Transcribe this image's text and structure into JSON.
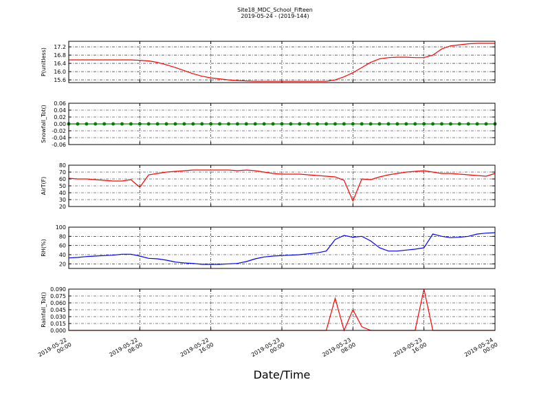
{
  "title": "Site18_MDC_School_Fifteen",
  "subtitle": "2019-05-24 - (2019-144)",
  "xlabel": "Date/Time",
  "chart_data": [
    {
      "type": "line",
      "ylabel": "P(unitless)",
      "color": "#ff0000",
      "grid": true,
      "xlim": [
        "2019-05-22 00:00",
        "2019-05-24 00:00"
      ],
      "xticks": [
        "2019-05-22 00:00",
        "2019-05-22 08:00",
        "2019-05-22 16:00",
        "2019-05-23 00:00",
        "2019-05-23 08:00",
        "2019-05-23 16:00",
        "2019-05-24 00:00"
      ],
      "ylim": [
        15.47,
        17.47
      ],
      "yticks": [
        15.6,
        {
          "value": 16,
          "label": "16.0"
        },
        16.4,
        16.8,
        17.2
      ],
      "x": [
        "2019-05-22 00:00",
        "2019-05-22 01:00",
        "2019-05-22 02:00",
        "2019-05-22 03:00",
        "2019-05-22 04:00",
        "2019-05-22 05:00",
        "2019-05-22 06:00",
        "2019-05-22 07:00",
        "2019-05-22 08:00",
        "2019-05-22 09:00",
        "2019-05-22 10:00",
        "2019-05-22 11:00",
        "2019-05-22 12:00",
        "2019-05-22 13:00",
        "2019-05-22 14:00",
        "2019-05-22 15:00",
        "2019-05-22 16:00",
        "2019-05-22 17:00",
        "2019-05-22 18:00",
        "2019-05-22 19:00",
        "2019-05-22 20:00",
        "2019-05-22 21:00",
        "2019-05-22 22:00",
        "2019-05-22 23:00",
        "2019-05-23 00:00",
        "2019-05-23 01:00",
        "2019-05-23 02:00",
        "2019-05-23 03:00",
        "2019-05-23 04:00",
        "2019-05-23 05:00",
        "2019-05-23 06:00",
        "2019-05-23 07:00",
        "2019-05-23 08:00",
        "2019-05-23 09:00",
        "2019-05-23 10:00",
        "2019-05-23 11:00",
        "2019-05-23 12:00",
        "2019-05-23 13:00",
        "2019-05-23 14:00",
        "2019-05-23 15:00",
        "2019-05-23 16:00",
        "2019-05-23 17:00",
        "2019-05-23 18:00",
        "2019-05-23 19:00",
        "2019-05-23 20:00",
        "2019-05-23 21:00",
        "2019-05-23 22:00",
        "2019-05-23 23:00",
        "2019-05-24 00:00"
      ],
      "values": [
        16.57,
        16.57,
        16.57,
        16.57,
        16.57,
        16.57,
        16.57,
        16.57,
        16.55,
        16.52,
        16.45,
        16.33,
        16.2,
        16.05,
        15.9,
        15.78,
        15.7,
        15.65,
        15.6,
        15.57,
        15.55,
        15.53,
        15.53,
        15.53,
        15.53,
        15.53,
        15.53,
        15.53,
        15.53,
        15.53,
        15.6,
        15.75,
        15.95,
        16.2,
        16.45,
        16.62,
        16.68,
        16.7,
        16.7,
        16.68,
        16.68,
        16.8,
        17.1,
        17.25,
        17.3,
        17.35,
        17.37,
        17.37,
        17.37
      ]
    },
    {
      "type": "line",
      "ylabel": "Snowfall_Tot()",
      "color": "#008000",
      "marker": true,
      "grid": true,
      "xlim": [
        "2019-05-22 00:00",
        "2019-05-24 00:00"
      ],
      "xticks": [
        "2019-05-22 00:00",
        "2019-05-22 08:00",
        "2019-05-22 16:00",
        "2019-05-23 00:00",
        "2019-05-23 08:00",
        "2019-05-23 16:00",
        "2019-05-24 00:00"
      ],
      "ylim": [
        -0.06,
        0.06
      ],
      "yticks": [
        -0.06,
        -0.04,
        -0.02,
        {
          "value": 0,
          "label": "0.00"
        },
        0.02,
        0.04,
        0.06
      ],
      "x": [
        "2019-05-22 00:00",
        "2019-05-22 01:00",
        "2019-05-22 02:00",
        "2019-05-22 03:00",
        "2019-05-22 04:00",
        "2019-05-22 05:00",
        "2019-05-22 06:00",
        "2019-05-22 07:00",
        "2019-05-22 08:00",
        "2019-05-22 09:00",
        "2019-05-22 10:00",
        "2019-05-22 11:00",
        "2019-05-22 12:00",
        "2019-05-22 13:00",
        "2019-05-22 14:00",
        "2019-05-22 15:00",
        "2019-05-22 16:00",
        "2019-05-22 17:00",
        "2019-05-22 18:00",
        "2019-05-22 19:00",
        "2019-05-22 20:00",
        "2019-05-22 21:00",
        "2019-05-22 22:00",
        "2019-05-22 23:00",
        "2019-05-23 00:00",
        "2019-05-23 01:00",
        "2019-05-23 02:00",
        "2019-05-23 03:00",
        "2019-05-23 04:00",
        "2019-05-23 05:00",
        "2019-05-23 06:00",
        "2019-05-23 07:00",
        "2019-05-23 08:00",
        "2019-05-23 09:00",
        "2019-05-23 10:00",
        "2019-05-23 11:00",
        "2019-05-23 12:00",
        "2019-05-23 13:00",
        "2019-05-23 14:00",
        "2019-05-23 15:00",
        "2019-05-23 16:00",
        "2019-05-23 17:00",
        "2019-05-23 18:00",
        "2019-05-23 19:00",
        "2019-05-23 20:00",
        "2019-05-23 21:00",
        "2019-05-23 22:00",
        "2019-05-23 23:00",
        "2019-05-24 00:00"
      ],
      "values": [
        0,
        0,
        0,
        0,
        0,
        0,
        0,
        0,
        0,
        0,
        0,
        0,
        0,
        0,
        0,
        0,
        0,
        0,
        0,
        0,
        0,
        0,
        0,
        0,
        0,
        0,
        0,
        0,
        0,
        0,
        0,
        0,
        0,
        0,
        0,
        0,
        0,
        0,
        0,
        0,
        0,
        0,
        0,
        0,
        0,
        0,
        0,
        0,
        0
      ]
    },
    {
      "type": "line",
      "ylabel": "AirT(F)",
      "color": "#ff0000",
      "grid": true,
      "xlim": [
        "2019-05-22 00:00",
        "2019-05-24 00:00"
      ],
      "xticks": [
        "2019-05-22 00:00",
        "2019-05-22 08:00",
        "2019-05-22 16:00",
        "2019-05-23 00:00",
        "2019-05-23 08:00",
        "2019-05-23 16:00",
        "2019-05-24 00:00"
      ],
      "ylim": [
        20,
        80
      ],
      "yticks": [
        20,
        30,
        40,
        50,
        60,
        70,
        80
      ],
      "x": [
        "2019-05-22 00:00",
        "2019-05-22 01:00",
        "2019-05-22 02:00",
        "2019-05-22 03:00",
        "2019-05-22 04:00",
        "2019-05-22 05:00",
        "2019-05-22 06:00",
        "2019-05-22 07:00",
        "2019-05-22 08:00",
        "2019-05-22 09:00",
        "2019-05-22 10:00",
        "2019-05-22 11:00",
        "2019-05-22 12:00",
        "2019-05-22 13:00",
        "2019-05-22 14:00",
        "2019-05-22 15:00",
        "2019-05-22 16:00",
        "2019-05-22 17:00",
        "2019-05-22 18:00",
        "2019-05-22 19:00",
        "2019-05-22 20:00",
        "2019-05-22 21:00",
        "2019-05-22 22:00",
        "2019-05-22 23:00",
        "2019-05-23 00:00",
        "2019-05-23 01:00",
        "2019-05-23 02:00",
        "2019-05-23 03:00",
        "2019-05-23 04:00",
        "2019-05-23 05:00",
        "2019-05-23 06:00",
        "2019-05-23 07:00",
        "2019-05-23 08:00",
        "2019-05-23 09:00",
        "2019-05-23 10:00",
        "2019-05-23 11:00",
        "2019-05-23 12:00",
        "2019-05-23 13:00",
        "2019-05-23 14:00",
        "2019-05-23 15:00",
        "2019-05-23 16:00",
        "2019-05-23 17:00",
        "2019-05-23 18:00",
        "2019-05-23 19:00",
        "2019-05-23 20:00",
        "2019-05-23 21:00",
        "2019-05-23 22:00",
        "2019-05-23 23:00",
        "2019-05-24 00:00"
      ],
      "values": [
        61,
        60,
        60,
        59,
        58,
        57,
        57,
        59,
        48,
        66,
        68,
        70,
        71,
        72,
        73,
        73,
        73,
        73,
        73,
        72,
        73,
        72,
        70,
        68,
        67,
        67,
        67,
        66,
        65,
        64,
        63,
        58,
        28,
        60,
        59,
        63,
        66,
        68,
        70,
        71,
        72,
        70,
        68,
        68,
        67,
        66,
        65,
        64,
        68
      ]
    },
    {
      "type": "line",
      "ylabel": "RH(%)",
      "color": "#0000ff",
      "grid": true,
      "xlim": [
        "2019-05-22 00:00",
        "2019-05-24 00:00"
      ],
      "xticks": [
        "2019-05-22 00:00",
        "2019-05-22 08:00",
        "2019-05-22 16:00",
        "2019-05-23 00:00",
        "2019-05-23 08:00",
        "2019-05-23 16:00",
        "2019-05-24 00:00"
      ],
      "ylim": [
        10,
        100
      ],
      "yticks": [
        20,
        40,
        60,
        80,
        100
      ],
      "x": [
        "2019-05-22 00:00",
        "2019-05-22 01:00",
        "2019-05-22 02:00",
        "2019-05-22 03:00",
        "2019-05-22 04:00",
        "2019-05-22 05:00",
        "2019-05-22 06:00",
        "2019-05-22 07:00",
        "2019-05-22 08:00",
        "2019-05-22 09:00",
        "2019-05-22 10:00",
        "2019-05-22 11:00",
        "2019-05-22 12:00",
        "2019-05-22 13:00",
        "2019-05-22 14:00",
        "2019-05-22 15:00",
        "2019-05-22 16:00",
        "2019-05-22 17:00",
        "2019-05-22 18:00",
        "2019-05-22 19:00",
        "2019-05-22 20:00",
        "2019-05-22 21:00",
        "2019-05-22 22:00",
        "2019-05-22 23:00",
        "2019-05-23 00:00",
        "2019-05-23 01:00",
        "2019-05-23 02:00",
        "2019-05-23 03:00",
        "2019-05-23 04:00",
        "2019-05-23 05:00",
        "2019-05-23 06:00",
        "2019-05-23 07:00",
        "2019-05-23 08:00",
        "2019-05-23 09:00",
        "2019-05-23 10:00",
        "2019-05-23 11:00",
        "2019-05-23 12:00",
        "2019-05-23 13:00",
        "2019-05-23 14:00",
        "2019-05-23 15:00",
        "2019-05-23 16:00",
        "2019-05-23 17:00",
        "2019-05-23 18:00",
        "2019-05-23 19:00",
        "2019-05-23 20:00",
        "2019-05-23 21:00",
        "2019-05-23 22:00",
        "2019-05-23 23:00",
        "2019-05-24 00:00"
      ],
      "values": [
        33,
        34,
        36,
        37,
        38,
        39,
        41,
        41,
        37,
        32,
        31,
        28,
        24,
        22,
        21,
        19,
        19,
        19,
        20,
        21,
        25,
        31,
        35,
        37,
        38,
        39,
        40,
        42,
        44,
        48,
        73,
        82,
        78,
        80,
        70,
        55,
        48,
        48,
        50,
        52,
        55,
        85,
        80,
        77,
        78,
        80,
        85,
        87,
        88
      ]
    },
    {
      "type": "line",
      "ylabel": "Rainfall_Tot()",
      "color": "#ff0000",
      "grid": true,
      "xlim": [
        "2019-05-22 00:00",
        "2019-05-24 00:00"
      ],
      "xticks": [
        "2019-05-22 00:00",
        "2019-05-22 08:00",
        "2019-05-22 16:00",
        "2019-05-23 00:00",
        "2019-05-23 08:00",
        "2019-05-23 16:00",
        "2019-05-24 00:00"
      ],
      "ylim": [
        0,
        0.09
      ],
      "yticks": [
        {
          "value": 0,
          "label": "0.000"
        },
        {
          "value": 0.015,
          "label": "0.015"
        },
        {
          "value": 0.03,
          "label": "0.030"
        },
        {
          "value": 0.045,
          "label": "0.045"
        },
        {
          "value": 0.06,
          "label": "0.060"
        },
        {
          "value": 0.075,
          "label": "0.075"
        },
        {
          "value": 0.09,
          "label": "0.090"
        }
      ],
      "x": [
        "2019-05-22 00:00",
        "2019-05-22 01:00",
        "2019-05-22 02:00",
        "2019-05-22 03:00",
        "2019-05-22 04:00",
        "2019-05-22 05:00",
        "2019-05-22 06:00",
        "2019-05-22 07:00",
        "2019-05-22 08:00",
        "2019-05-22 09:00",
        "2019-05-22 10:00",
        "2019-05-22 11:00",
        "2019-05-22 12:00",
        "2019-05-22 13:00",
        "2019-05-22 14:00",
        "2019-05-22 15:00",
        "2019-05-22 16:00",
        "2019-05-22 17:00",
        "2019-05-22 18:00",
        "2019-05-22 19:00",
        "2019-05-22 20:00",
        "2019-05-22 21:00",
        "2019-05-22 22:00",
        "2019-05-22 23:00",
        "2019-05-23 00:00",
        "2019-05-23 01:00",
        "2019-05-23 02:00",
        "2019-05-23 03:00",
        "2019-05-23 04:00",
        "2019-05-23 05:00",
        "2019-05-23 06:00",
        "2019-05-23 07:00",
        "2019-05-23 08:00",
        "2019-05-23 09:00",
        "2019-05-23 10:00",
        "2019-05-23 11:00",
        "2019-05-23 12:00",
        "2019-05-23 13:00",
        "2019-05-23 14:00",
        "2019-05-23 15:00",
        "2019-05-23 16:00",
        "2019-05-23 17:00",
        "2019-05-23 18:00",
        "2019-05-23 19:00",
        "2019-05-23 20:00",
        "2019-05-23 21:00",
        "2019-05-23 22:00",
        "2019-05-23 23:00",
        "2019-05-24 00:00"
      ],
      "values": [
        0,
        0,
        0,
        0,
        0,
        0,
        0,
        0,
        0,
        0,
        0,
        0,
        0,
        0,
        0,
        0,
        0,
        0,
        0,
        0,
        0,
        0,
        0,
        0,
        0,
        0,
        0,
        0,
        0,
        0,
        0.07,
        0,
        0.045,
        0.008,
        0,
        0,
        0,
        0,
        0,
        0,
        0.09,
        0,
        0,
        0,
        0,
        0,
        0,
        0,
        0
      ]
    }
  ]
}
